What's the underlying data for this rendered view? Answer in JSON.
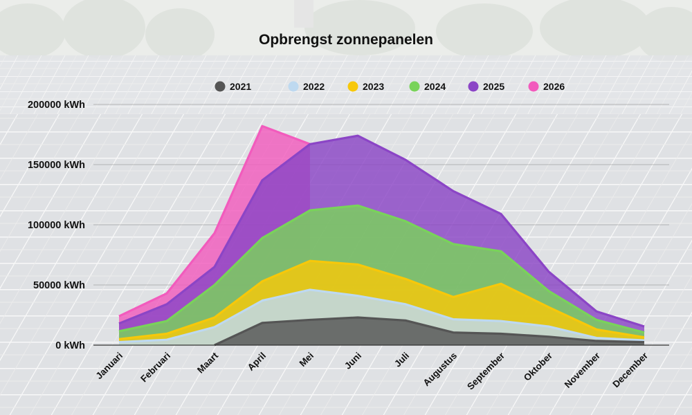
{
  "chart_data": {
    "type": "area",
    "stacked": true,
    "title": "Opbrengst zonnepanelen",
    "xlabel": "",
    "ylabel": "",
    "y_unit": "kWh",
    "ylim": [
      0,
      200000
    ],
    "y_ticks": [
      0,
      50000,
      100000,
      150000,
      200000
    ],
    "y_tick_labels": [
      "0 kWh",
      "50000 kWh",
      "100000 kWh",
      "150000 kWh",
      "200000 kWh"
    ],
    "grid": true,
    "legend_position": "top",
    "categories": [
      "Januari",
      "Februari",
      "Maart",
      "April",
      "Mei",
      "Juni",
      "Juli",
      "Augustus",
      "September",
      "Oktober",
      "November",
      "December"
    ],
    "series": [
      {
        "name": "2021",
        "color": "#555555",
        "cumulative": [
          null,
          null,
          0,
          18500,
          21000,
          23000,
          20500,
          10500,
          9500,
          7000,
          3500,
          2500
        ]
      },
      {
        "name": "2022",
        "color": "#bed9f0",
        "cumulative": [
          2500,
          4500,
          15000,
          37000,
          46000,
          41000,
          34000,
          21500,
          20000,
          15500,
          6000,
          4000
        ]
      },
      {
        "name": "2023",
        "color": "#f7c80a",
        "cumulative": [
          5000,
          9500,
          23000,
          53000,
          70000,
          67000,
          55000,
          40000,
          51000,
          31500,
          13000,
          6500
        ]
      },
      {
        "name": "2024",
        "color": "#79d35a",
        "cumulative": [
          11500,
          20000,
          50000,
          89000,
          112000,
          116000,
          103000,
          84000,
          78000,
          45000,
          21000,
          10500
        ]
      },
      {
        "name": "2025",
        "color": "#8b45c6",
        "cumulative": [
          18000,
          34000,
          65000,
          137000,
          167000,
          174000,
          154000,
          128000,
          109000,
          61000,
          28000,
          15500
        ]
      },
      {
        "name": "2026",
        "color": "#f25bbd",
        "cumulative": [
          24000,
          43000,
          93000,
          182000,
          167000,
          null,
          null,
          null,
          null,
          null,
          null,
          null
        ]
      }
    ]
  },
  "background": {
    "description_colors": {
      "sky": "#ededed",
      "trees": "#d7dcd6",
      "roof": "#e6e8ea",
      "panels": "#d4d7db"
    }
  }
}
